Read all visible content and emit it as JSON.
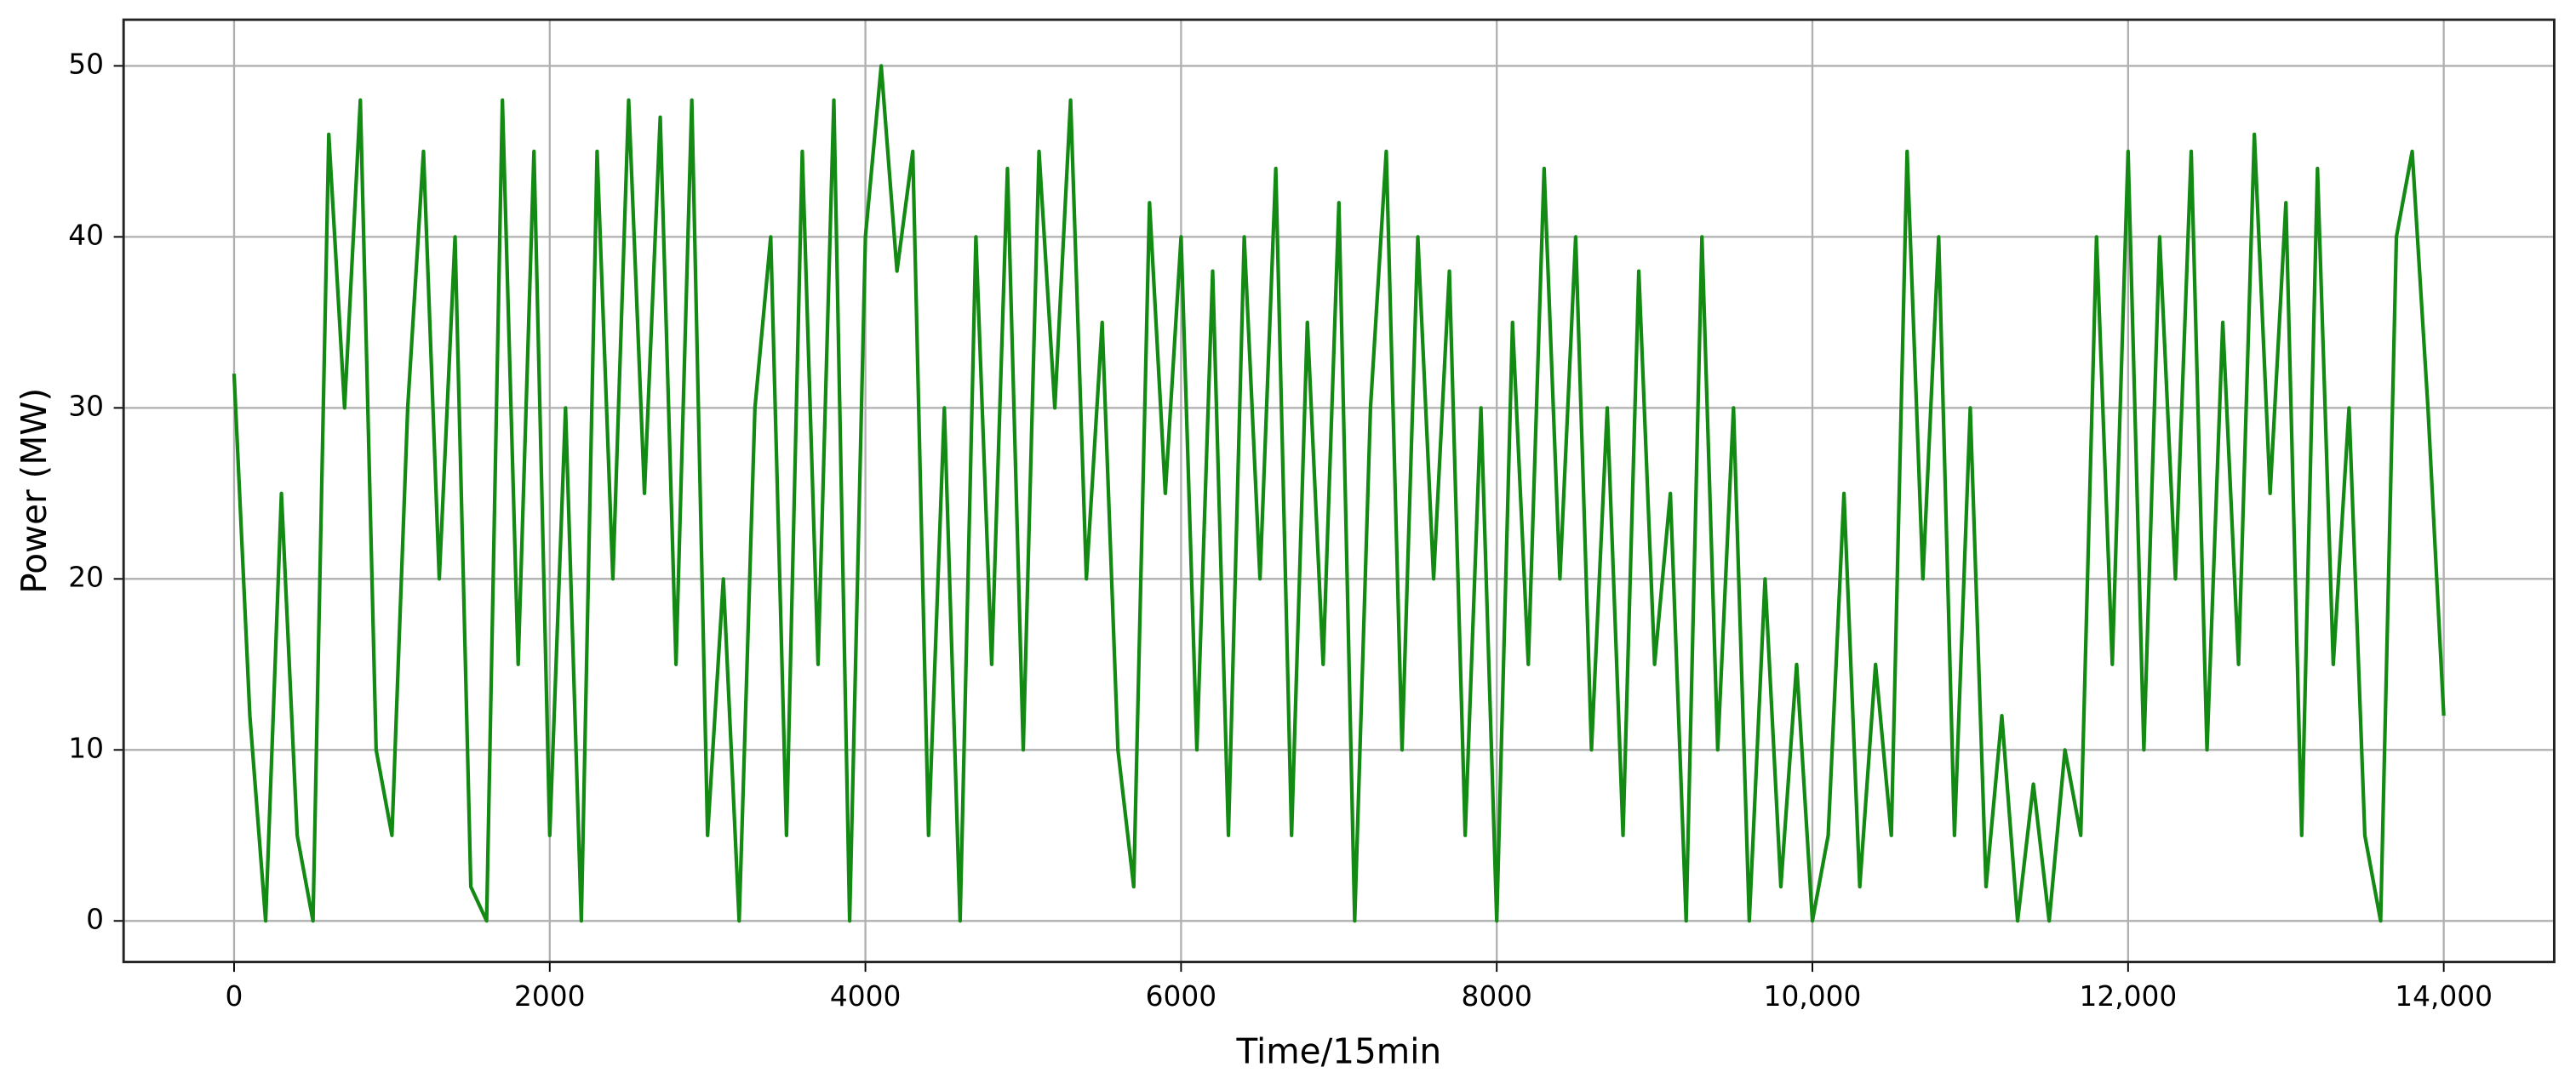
{
  "chart_data": {
    "type": "line",
    "xlabel": "Time/15min",
    "ylabel": "Power (MW)",
    "x": [
      0,
      100,
      200,
      300,
      400,
      500,
      600,
      700,
      800,
      900,
      1000,
      1100,
      1200,
      1300,
      1400,
      1500,
      1600,
      1700,
      1800,
      1900,
      2000,
      2100,
      2200,
      2300,
      2400,
      2500,
      2600,
      2700,
      2800,
      2900,
      3000,
      3100,
      3200,
      3300,
      3400,
      3500,
      3600,
      3700,
      3800,
      3900,
      4000,
      4100,
      4200,
      4300,
      4400,
      4500,
      4600,
      4700,
      4800,
      4900,
      5000,
      5100,
      5200,
      5300,
      5400,
      5500,
      5600,
      5700,
      5800,
      5900,
      6000,
      6100,
      6200,
      6300,
      6400,
      6500,
      6600,
      6700,
      6800,
      6900,
      7000,
      7100,
      7200,
      7300,
      7400,
      7500,
      7600,
      7700,
      7800,
      7900,
      8000,
      8100,
      8200,
      8300,
      8400,
      8500,
      8600,
      8700,
      8800,
      8900,
      9000,
      9100,
      9200,
      9300,
      9400,
      9500,
      9600,
      9700,
      9800,
      9900,
      10000,
      10100,
      10200,
      10300,
      10400,
      10500,
      10600,
      10700,
      10800,
      10900,
      11000,
      11100,
      11200,
      11300,
      11400,
      11500,
      11600,
      11700,
      11800,
      11900,
      12000,
      12100,
      12200,
      12300,
      12400,
      12500,
      12600,
      12700,
      12800,
      12900,
      13000,
      13100,
      13200,
      13300,
      13400,
      13500,
      13600,
      13700,
      13800,
      13900,
      14000
    ],
    "series": [
      {
        "name": "Power",
        "color": "#138a13",
        "values": [
          32,
          12,
          0,
          25,
          5,
          0,
          46,
          30,
          48,
          10,
          5,
          30,
          45,
          20,
          40,
          2,
          0,
          48,
          15,
          45,
          5,
          30,
          0,
          45,
          20,
          48,
          25,
          47,
          15,
          48,
          5,
          20,
          0,
          30,
          40,
          5,
          45,
          15,
          48,
          0,
          40,
          50,
          38,
          45,
          5,
          30,
          0,
          40,
          15,
          44,
          10,
          45,
          30,
          48,
          20,
          35,
          10,
          2,
          42,
          25,
          40,
          10,
          38,
          5,
          40,
          20,
          44,
          5,
          35,
          15,
          42,
          0,
          30,
          45,
          10,
          40,
          20,
          38,
          5,
          30,
          0,
          35,
          15,
          44,
          20,
          40,
          10,
          30,
          5,
          38,
          15,
          25,
          0,
          40,
          10,
          30,
          0,
          20,
          2,
          15,
          0,
          5,
          25,
          2,
          15,
          5,
          45,
          20,
          40,
          5,
          30,
          2,
          12,
          0,
          8,
          0,
          10,
          5,
          40,
          15,
          45,
          10,
          40,
          20,
          45,
          10,
          35,
          15,
          46,
          25,
          42,
          5,
          44,
          15,
          30,
          5,
          0,
          40,
          45,
          30,
          12
        ]
      }
    ],
    "xlim": [
      -700,
      14700
    ],
    "ylim": [
      -2.4,
      52.7
    ],
    "xticks": [
      0,
      2000,
      4000,
      6000,
      8000,
      {
        "value": 10000,
        "label": "10,000"
      },
      {
        "value": 12000,
        "label": "12,000"
      },
      {
        "value": 14000,
        "label": "14,000"
      }
    ],
    "yticks": [
      0,
      10,
      20,
      30,
      40,
      50
    ],
    "grid": true
  }
}
